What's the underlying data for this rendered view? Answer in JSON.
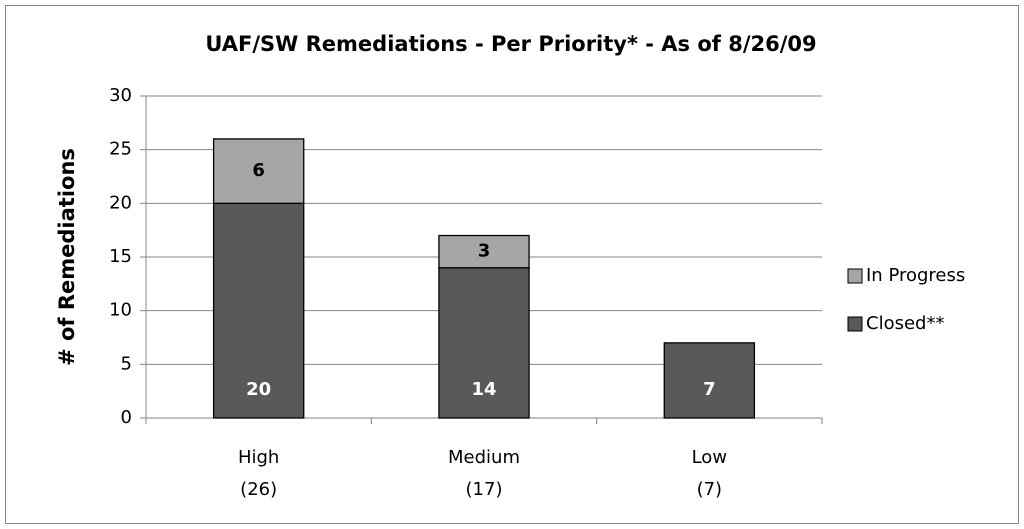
{
  "chart_data": {
    "type": "stacked_bar",
    "title": "UAF/SW Remediations - Per Priority* - As of 8/26/09",
    "y_label": "# of Remediations",
    "categories": [
      "High\n(26)",
      "Medium\n(17)",
      "Low\n(7)"
    ],
    "series": [
      {
        "name": "Closed**",
        "color": "#595959",
        "label_color": "#ffffff",
        "values": [
          20,
          14,
          7
        ]
      },
      {
        "name": "In Progress",
        "color": "#a6a6a6",
        "label_color": "#000000",
        "values": [
          6,
          3,
          null
        ]
      }
    ],
    "ylim": [
      0,
      30
    ],
    "yticks": [
      0,
      5,
      10,
      15,
      20,
      25,
      30
    ],
    "grid": true,
    "legend": "right"
  }
}
